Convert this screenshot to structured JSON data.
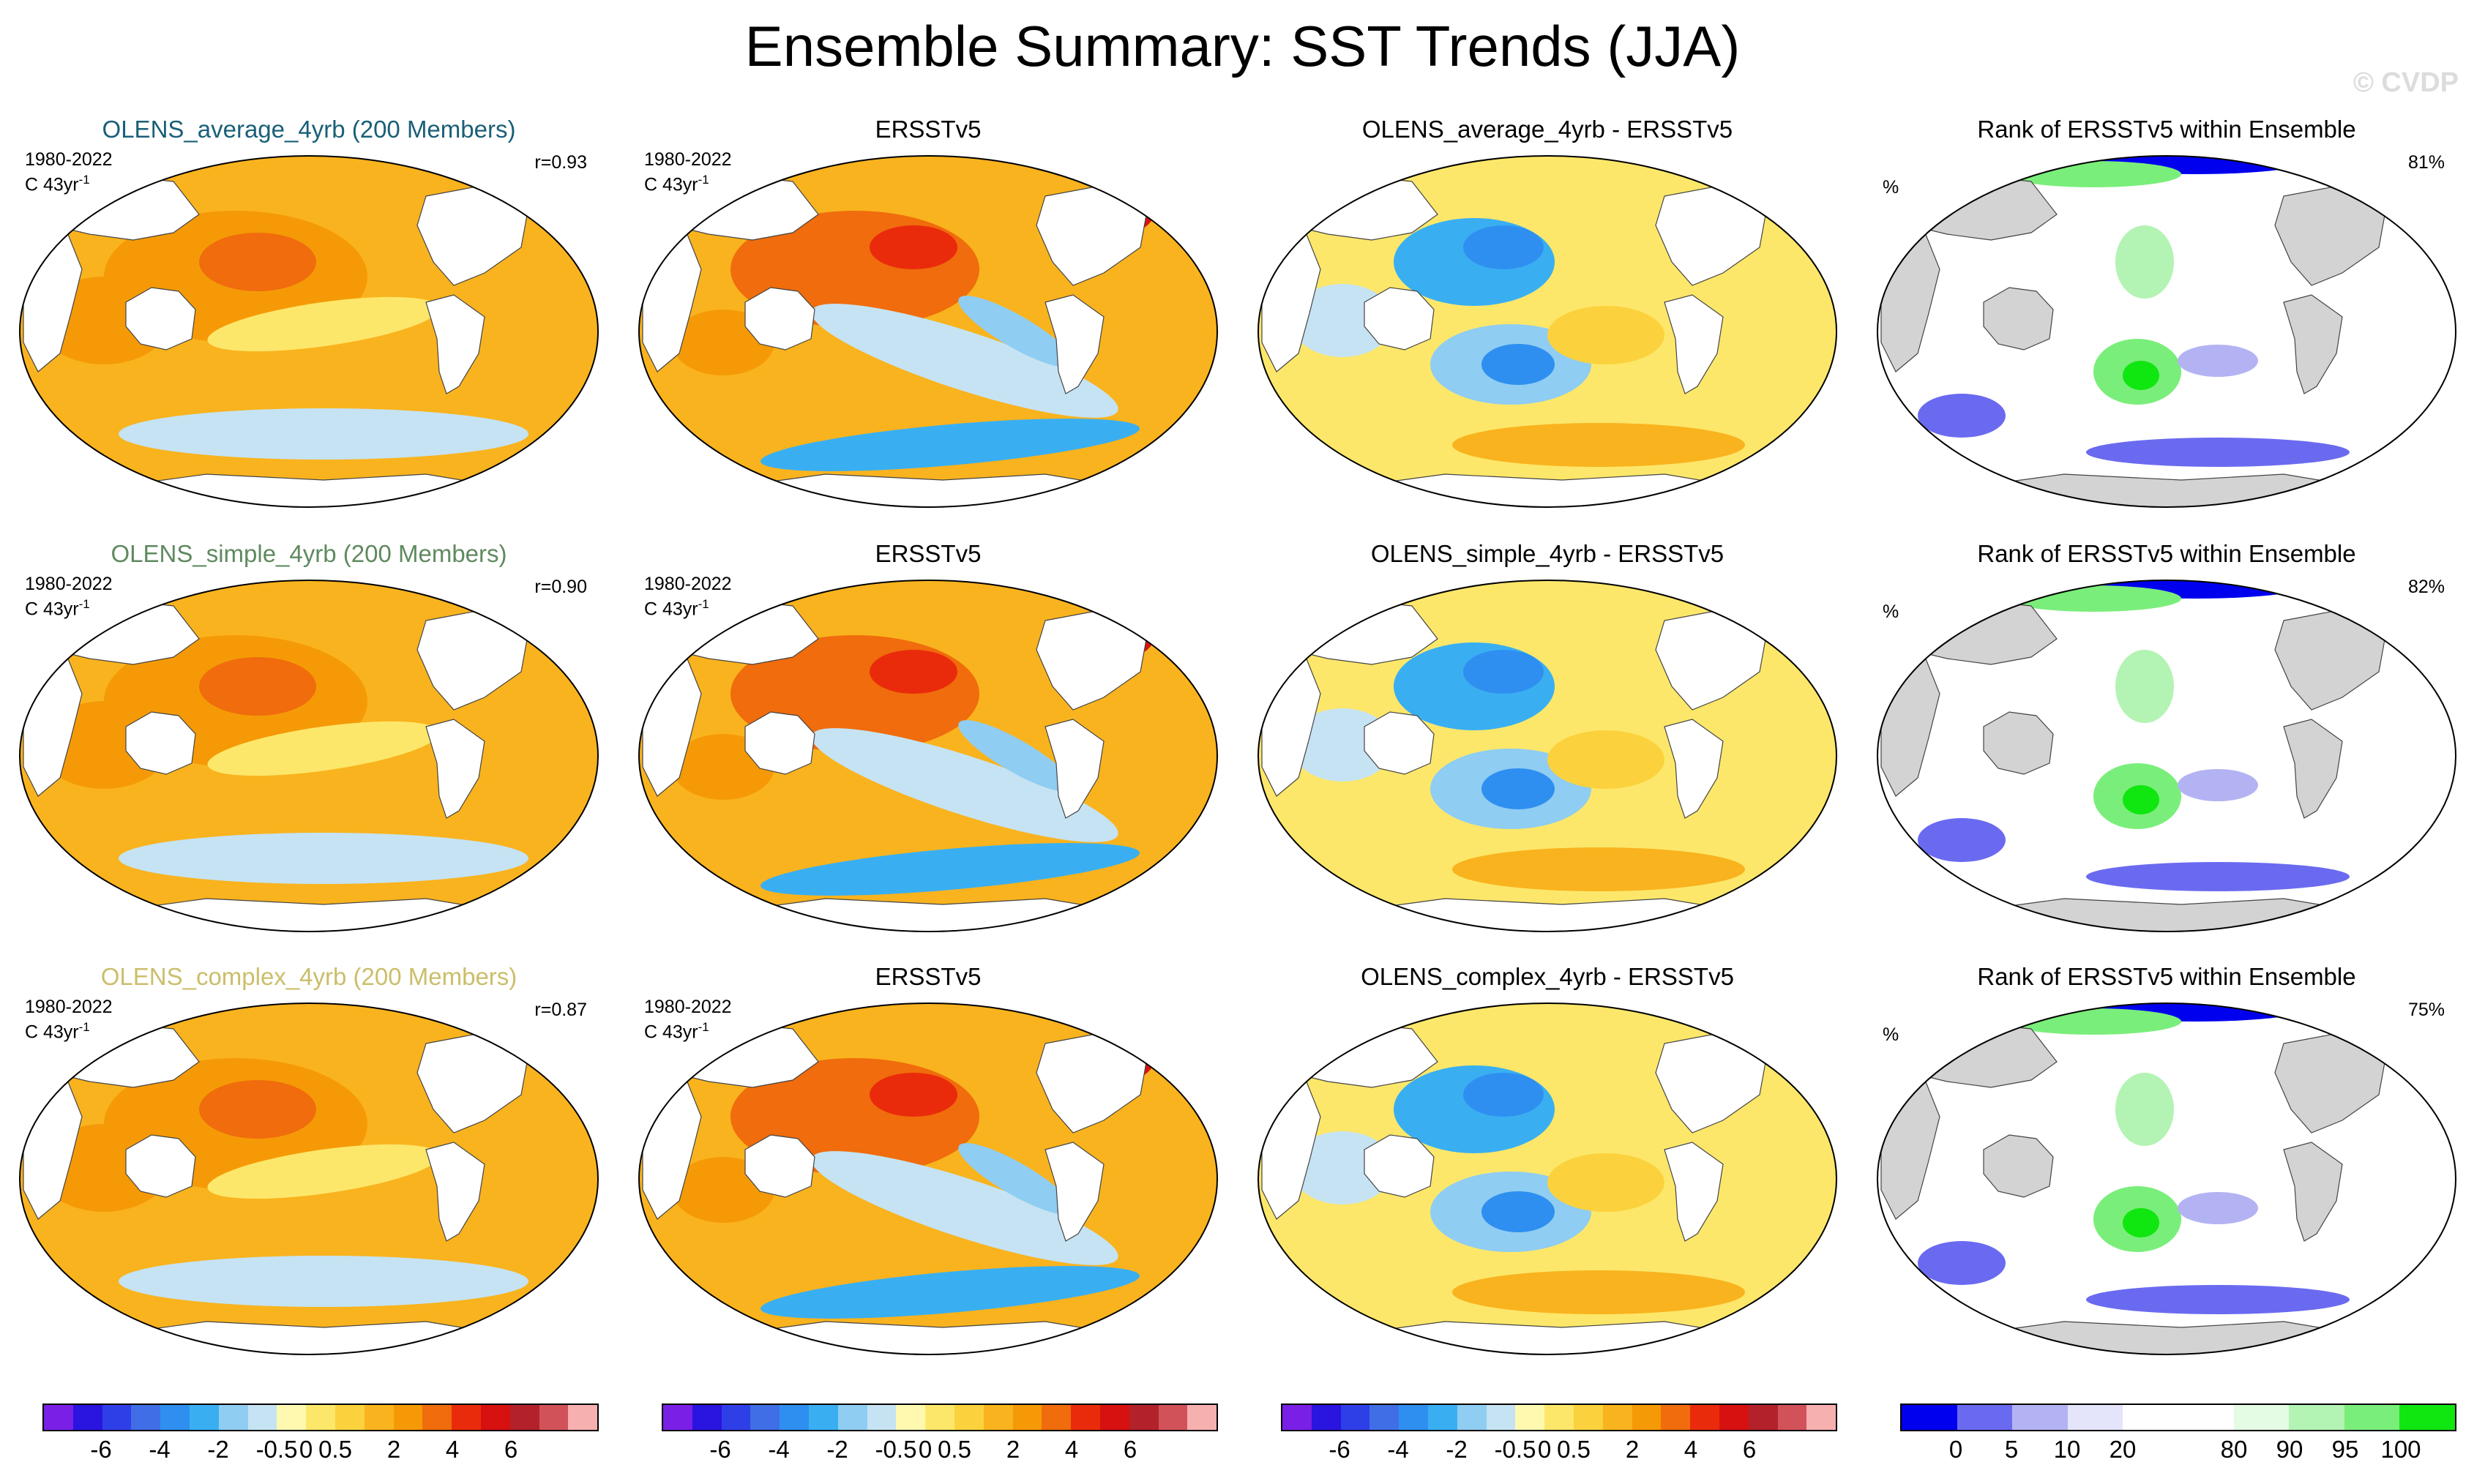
{
  "title": "Ensemble Summary: SST Trends (JJA)",
  "watermark": "© CVDP",
  "period": "1980-2022",
  "units_line": "C 43yr",
  "units_sup": "-1",
  "pct_symbol": "%",
  "colors": {
    "title_average": "#1a5f78",
    "title_simple": "#5f8a5f",
    "title_complex": "#cbbe6a",
    "land": "#d3d3d3",
    "ocean_white": "#ffffff"
  },
  "chart_data": [
    {
      "type": "heatmap",
      "row": 1,
      "col": 1,
      "title": "OLENS_average_4yrb (200 Members)",
      "title_color": "#1a5f78",
      "corr": "r=0.93",
      "palette": "sst",
      "pattern": "model"
    },
    {
      "type": "heatmap",
      "row": 1,
      "col": 2,
      "title": "ERSSTv5",
      "palette": "sst",
      "pattern": "obs"
    },
    {
      "type": "heatmap",
      "row": 1,
      "col": 3,
      "title": "OLENS_average_4yrb - ERSSTv5",
      "palette": "sst",
      "pattern": "diff"
    },
    {
      "type": "heatmap",
      "row": 1,
      "col": 4,
      "title": "Rank of ERSSTv5 within Ensemble",
      "pct_value": "81%",
      "palette": "rank",
      "pattern": "rank"
    },
    {
      "type": "heatmap",
      "row": 2,
      "col": 1,
      "title": "OLENS_simple_4yrb (200 Members)",
      "title_color": "#5f8a5f",
      "corr": "r=0.90",
      "palette": "sst",
      "pattern": "model"
    },
    {
      "type": "heatmap",
      "row": 2,
      "col": 2,
      "title": "ERSSTv5",
      "palette": "sst",
      "pattern": "obs"
    },
    {
      "type": "heatmap",
      "row": 2,
      "col": 3,
      "title": "OLENS_simple_4yrb - ERSSTv5",
      "palette": "sst",
      "pattern": "diff"
    },
    {
      "type": "heatmap",
      "row": 2,
      "col": 4,
      "title": "Rank of ERSSTv5 within Ensemble",
      "pct_value": "82%",
      "palette": "rank",
      "pattern": "rank"
    },
    {
      "type": "heatmap",
      "row": 3,
      "col": 1,
      "title": "OLENS_complex_4yrb (200 Members)",
      "title_color": "#cbbe6a",
      "corr": "r=0.87",
      "palette": "sst",
      "pattern": "model"
    },
    {
      "type": "heatmap",
      "row": 3,
      "col": 2,
      "title": "ERSSTv5",
      "palette": "sst",
      "pattern": "obs"
    },
    {
      "type": "heatmap",
      "row": 3,
      "col": 3,
      "title": "OLENS_complex_4yrb - ERSSTv5",
      "palette": "sst",
      "pattern": "diff"
    },
    {
      "type": "heatmap",
      "row": 3,
      "col": 4,
      "title": "Rank of ERSSTv5 within Ensemble",
      "pct_value": "75%",
      "palette": "rank",
      "pattern": "rank"
    }
  ],
  "colorbars": {
    "sst": {
      "colors": [
        "#7a1fe6",
        "#2a14e0",
        "#2f3fe8",
        "#3f6ee6",
        "#2f8ff0",
        "#39aff2",
        "#8fcdf2",
        "#c5e3f3",
        "#fff9b0",
        "#fde76a",
        "#fbd23d",
        "#f9b31e",
        "#f59a06",
        "#f06c0c",
        "#ea2b0b",
        "#d6110f",
        "#b3222a",
        "#d2525a",
        "#f7b0b0"
      ],
      "labels": [
        "-6",
        "-4",
        "-2",
        "-0.5",
        "0",
        "0.5",
        "2",
        "4",
        "6"
      ],
      "label_boundaries": [
        2,
        4,
        6,
        8,
        9,
        10,
        12,
        14,
        16
      ]
    },
    "rank": {
      "colors": [
        "#0000ee",
        "#6a6af0",
        "#b3b3f3",
        "#e4e4fb",
        "#ffffff",
        "#ffffff",
        "#e4fbe4",
        "#b3f3b3",
        "#7aee7a",
        "#10e610"
      ],
      "labels": [
        "0",
        "5",
        "10",
        "20",
        "80",
        "90",
        "95",
        "100"
      ],
      "label_boundaries": [
        1,
        2,
        3,
        4,
        6,
        7,
        8,
        9
      ]
    }
  }
}
